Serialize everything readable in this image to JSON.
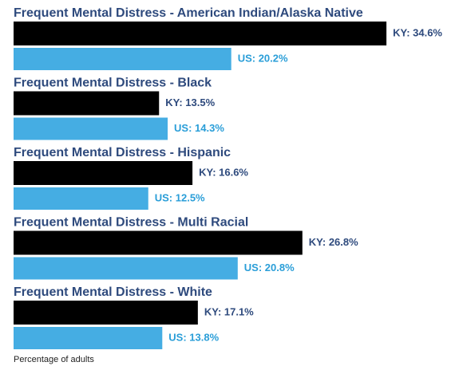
{
  "chart_data": {
    "type": "bar",
    "orientation": "horizontal",
    "categories": [
      "Frequent Mental Distress - American Indian/Alaska Native",
      "Frequent Mental Distress - Black",
      "Frequent Mental Distress - Hispanic",
      "Frequent Mental Distress - Multi Racial",
      "Frequent Mental Distress - White"
    ],
    "series": [
      {
        "color": "#000000",
        "label_color": "#2e4a7d",
        "values": [
          34.6,
          13.5,
          16.6,
          26.8,
          17.1
        ],
        "value_labels": [
          "KY: 34.6%",
          "KY: 13.5%",
          "KY: 16.6%",
          "KY: 26.8%",
          "KY: 17.1%"
        ]
      },
      {
        "color": "#45ade3",
        "label_color": "#2a9ed8",
        "values": [
          20.2,
          14.3,
          12.5,
          20.8,
          13.8
        ],
        "value_labels": [
          "US: 20.2%",
          "US: 14.3%",
          "US: 12.5%",
          "US: 20.8%",
          "US: 13.8%"
        ]
      }
    ],
    "xlim": [
      0,
      40
    ],
    "x_label": "Percentage of adults"
  }
}
